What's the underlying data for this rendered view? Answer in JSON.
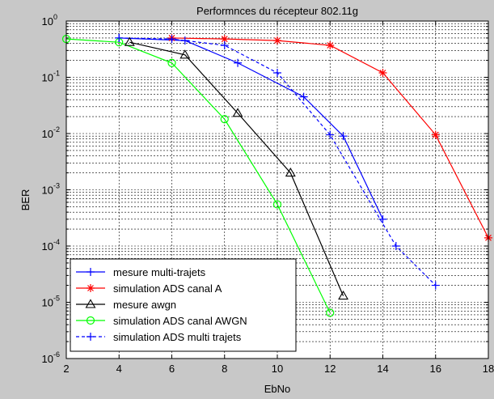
{
  "chart_data": {
    "type": "line",
    "title": "Performnces du récepteur 802.11g",
    "xlabel": "EbNo",
    "ylabel": "BER",
    "xlim": [
      2,
      18
    ],
    "ylim": [
      1e-06,
      1
    ],
    "yscale": "log",
    "grid": true,
    "legend_position": "bottom-left",
    "x_ticks": [
      "2",
      "4",
      "6",
      "8",
      "10",
      "12",
      "14",
      "16",
      "18"
    ],
    "y_ticks": [
      {
        "exp": 0,
        "label": "10",
        "sup": "0"
      },
      {
        "exp": -1,
        "label": "10",
        "sup": "-1"
      },
      {
        "exp": -2,
        "label": "10",
        "sup": "-2"
      },
      {
        "exp": -3,
        "label": "10",
        "sup": "-3"
      },
      {
        "exp": -4,
        "label": "10",
        "sup": "-4"
      },
      {
        "exp": -5,
        "label": "10",
        "sup": "-5"
      },
      {
        "exp": -6,
        "label": "10",
        "sup": "-6"
      }
    ],
    "series": [
      {
        "name": "mesure multi-trajets",
        "color": "#0000ff",
        "marker": "plus",
        "dash": false,
        "x": [
          4,
          6.5,
          8.5,
          11,
          12.5,
          14
        ],
        "y": [
          0.5,
          0.45,
          0.18,
          0.045,
          0.009,
          0.0003
        ]
      },
      {
        "name": "simulation ADS canal A",
        "color": "#ff0000",
        "marker": "star",
        "dash": false,
        "x": [
          6,
          8,
          10,
          12,
          14,
          16,
          18
        ],
        "y": [
          0.5,
          0.48,
          0.45,
          0.37,
          0.12,
          0.0095,
          0.00014
        ]
      },
      {
        "name": "mesure awgn",
        "color": "#000000",
        "marker": "triangle",
        "dash": false,
        "x": [
          4.4,
          6.5,
          8.5,
          10.5,
          12.5
        ],
        "y": [
          0.42,
          0.25,
          0.023,
          0.002,
          1.3e-05
        ]
      },
      {
        "name": "simulation ADS canal AWGN",
        "color": "#00ff00",
        "marker": "circle",
        "dash": false,
        "x": [
          2,
          4,
          6,
          8,
          10,
          12
        ],
        "y": [
          0.48,
          0.42,
          0.18,
          0.018,
          0.00055,
          6.5e-06
        ]
      },
      {
        "name": "simulation ADS multi trajets",
        "color": "#0000ff",
        "marker": "plus",
        "dash": true,
        "x": [
          4,
          6,
          8,
          10,
          12,
          14.5,
          16
        ],
        "y": [
          0.5,
          0.48,
          0.37,
          0.12,
          0.0095,
          0.0001,
          2e-05
        ]
      }
    ]
  }
}
